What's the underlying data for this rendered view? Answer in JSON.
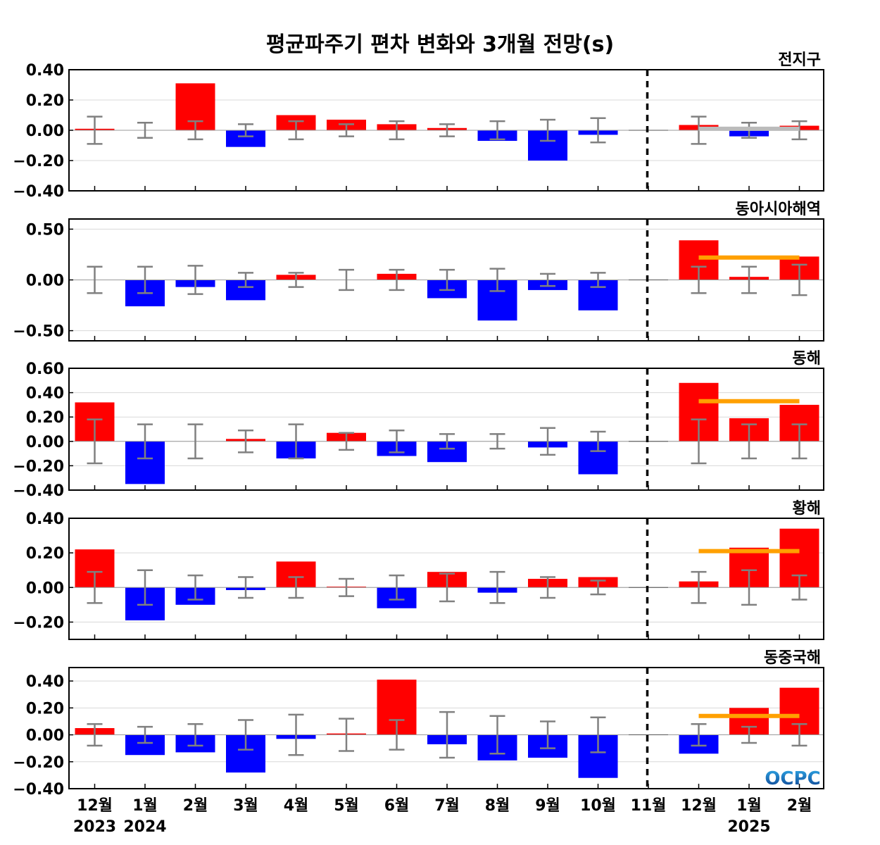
{
  "title": "평균파주기 편차 변화와 3개월 전망(s)",
  "logo_text": "OCPC",
  "x_tick_labels": [
    "12월",
    "1월",
    "2월",
    "3월",
    "4월",
    "5월",
    "6월",
    "7월",
    "8월",
    "9월",
    "10월",
    "11월",
    "12월",
    "1월",
    "2월"
  ],
  "year_labels": [
    {
      "text": "2023",
      "index": 0
    },
    {
      "text": "2024",
      "index": 1
    },
    {
      "text": "2025",
      "index": 13
    }
  ],
  "colors": {
    "positive": "#ff0000",
    "negative": "#0000ff",
    "errorbar": "#808080",
    "forecast_line": "#ffa000",
    "global_forecast_line": "#bbbbbb",
    "grid": "#d8d8d8"
  },
  "chart_data": [
    {
      "type": "bar",
      "title": "전지구",
      "categories": [
        "12월",
        "1월",
        "2월",
        "3월",
        "4월",
        "5월",
        "6월",
        "7월",
        "8월",
        "9월",
        "10월",
        "11월",
        "12월",
        "1월",
        "2월"
      ],
      "values": [
        0.01,
        0.0,
        0.31,
        -0.11,
        0.1,
        0.07,
        0.04,
        0.015,
        -0.07,
        -0.2,
        -0.03,
        0.0,
        0.035,
        -0.04,
        0.03
      ],
      "error_half_width": [
        0.09,
        0.05,
        0.06,
        0.04,
        0.06,
        0.04,
        0.06,
        0.04,
        0.06,
        0.07,
        0.08,
        null,
        0.09,
        0.05,
        0.06
      ],
      "forecast_mean": 0.01,
      "forecast_line_color": "#bbbbbb",
      "ylim": [
        -0.4,
        0.4
      ],
      "yticks": [
        -0.4,
        -0.2,
        0.0,
        0.2,
        0.4
      ],
      "ytick_labels": [
        "−0.40",
        "−0.20",
        "0.00",
        "0.20",
        "0.40"
      ],
      "grid": true
    },
    {
      "type": "bar",
      "title": "동아시아해역",
      "categories": [
        "12월",
        "1월",
        "2월",
        "3월",
        "4월",
        "5월",
        "6월",
        "7월",
        "8월",
        "9월",
        "10월",
        "11월",
        "12월",
        "1월",
        "2월"
      ],
      "values": [
        0.0,
        -0.26,
        -0.07,
        -0.2,
        0.05,
        0.0,
        0.06,
        -0.18,
        -0.4,
        -0.1,
        -0.3,
        0.0,
        0.39,
        0.03,
        0.23
      ],
      "error_half_width": [
        0.13,
        0.13,
        0.14,
        0.07,
        0.07,
        0.1,
        0.1,
        0.1,
        0.11,
        0.06,
        0.07,
        null,
        0.13,
        0.13,
        0.15
      ],
      "forecast_mean": 0.22,
      "forecast_line_color": "#ffa000",
      "ylim": [
        -0.6,
        0.6
      ],
      "yticks": [
        -0.5,
        0.0,
        0.5
      ],
      "ytick_labels": [
        "−0.50",
        "0.00",
        "0.50"
      ],
      "grid": true
    },
    {
      "type": "bar",
      "title": "동해",
      "categories": [
        "12월",
        "1월",
        "2월",
        "3월",
        "4월",
        "5월",
        "6월",
        "7월",
        "8월",
        "9월",
        "10월",
        "11월",
        "12월",
        "1월",
        "2월"
      ],
      "values": [
        0.32,
        -0.35,
        0.0,
        0.02,
        -0.14,
        0.07,
        -0.12,
        -0.17,
        0.0,
        -0.05,
        -0.27,
        0.0,
        0.48,
        0.19,
        0.3
      ],
      "error_half_width": [
        0.18,
        0.14,
        0.14,
        0.09,
        0.14,
        0.07,
        0.09,
        0.06,
        0.06,
        0.11,
        0.08,
        null,
        0.18,
        0.14,
        0.14
      ],
      "forecast_mean": 0.33,
      "forecast_line_color": "#ffa000",
      "ylim": [
        -0.4,
        0.6
      ],
      "yticks": [
        -0.4,
        -0.2,
        0.0,
        0.2,
        0.4,
        0.6
      ],
      "ytick_labels": [
        "−0.40",
        "−0.20",
        "0.00",
        "0.20",
        "0.40",
        "0.60"
      ],
      "grid": true
    },
    {
      "type": "bar",
      "title": "황해",
      "categories": [
        "12월",
        "1월",
        "2월",
        "3월",
        "4월",
        "5월",
        "6월",
        "7월",
        "8월",
        "9월",
        "10월",
        "11월",
        "12월",
        "1월",
        "2월"
      ],
      "values": [
        0.22,
        -0.19,
        -0.1,
        -0.015,
        0.15,
        0.005,
        -0.12,
        0.09,
        -0.03,
        0.05,
        0.06,
        0.0,
        0.035,
        0.23,
        0.34
      ],
      "error_half_width": [
        0.09,
        0.1,
        0.07,
        0.06,
        0.06,
        0.05,
        0.07,
        0.08,
        0.09,
        0.06,
        0.04,
        null,
        0.09,
        0.1,
        0.07
      ],
      "forecast_mean": 0.21,
      "forecast_line_color": "#ffa000",
      "ylim": [
        -0.3,
        0.4
      ],
      "yticks": [
        -0.2,
        0.0,
        0.2,
        0.4
      ],
      "ytick_labels": [
        "−0.20",
        "0.00",
        "0.20",
        "0.40"
      ],
      "grid": true
    },
    {
      "type": "bar",
      "title": "동중국해",
      "categories": [
        "12월",
        "1월",
        "2월",
        "3월",
        "4월",
        "5월",
        "6월",
        "7월",
        "8월",
        "9월",
        "10월",
        "11월",
        "12월",
        "1월",
        "2월"
      ],
      "values": [
        0.05,
        -0.15,
        -0.13,
        -0.28,
        -0.03,
        0.01,
        0.41,
        -0.07,
        -0.19,
        -0.17,
        -0.32,
        0.0,
        -0.14,
        0.2,
        0.35
      ],
      "error_half_width": [
        0.08,
        0.06,
        0.08,
        0.11,
        0.15,
        0.12,
        0.11,
        0.17,
        0.14,
        0.1,
        0.13,
        null,
        0.08,
        0.06,
        0.08
      ],
      "forecast_mean": 0.14,
      "forecast_line_color": "#ffa000",
      "ylim": [
        -0.4,
        0.5
      ],
      "yticks": [
        -0.4,
        -0.2,
        0.0,
        0.2,
        0.4
      ],
      "ytick_labels": [
        "−0.40",
        "−0.20",
        "0.00",
        "0.20",
        "0.40"
      ],
      "grid": true
    }
  ]
}
